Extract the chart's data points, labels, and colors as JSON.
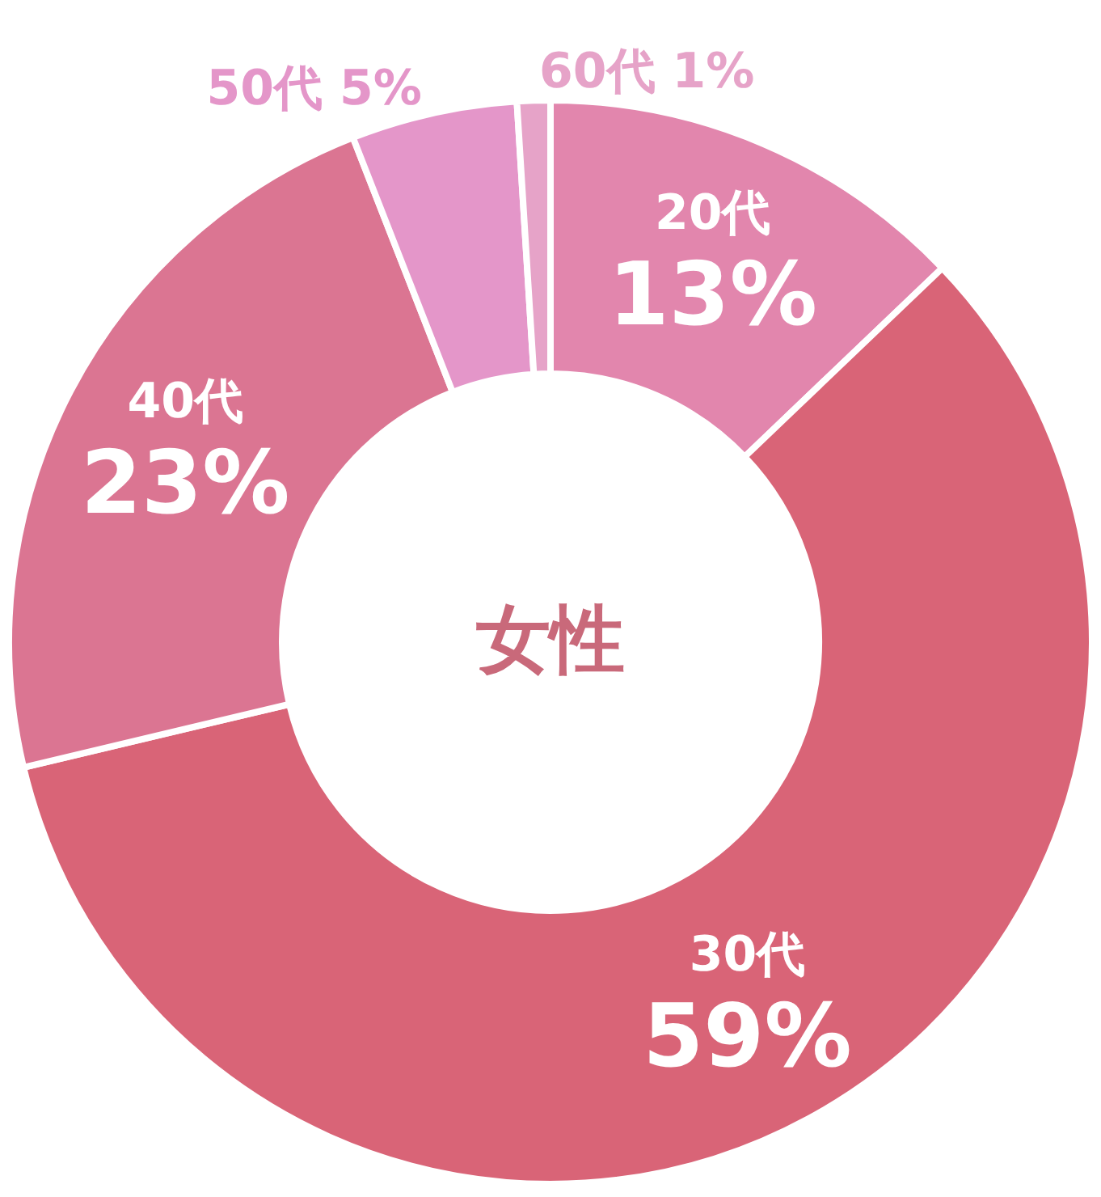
{
  "chart_data": {
    "type": "donut",
    "title": "女性",
    "categories": [
      "20代",
      "30代",
      "40代",
      "50代",
      "60代"
    ],
    "values": [
      13,
      59,
      23,
      5,
      1
    ],
    "value_labels": [
      "13%",
      "59%",
      "23%",
      "5%",
      "1%"
    ],
    "colors": [
      "#e286ad",
      "#d96477",
      "#db7592",
      "#e496c9",
      "#e6a3c8"
    ]
  }
}
